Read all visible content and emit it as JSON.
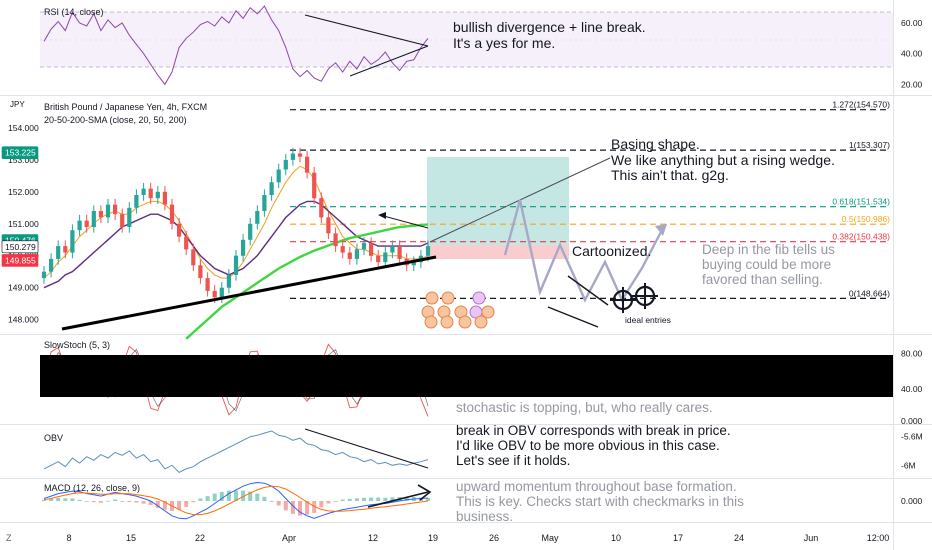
{
  "header": {
    "symbol_title": "British Pound / Japanese Yen, 4h, FXCM",
    "sma_legend": "20-50-200-SMA (close, 20, 50, 200)",
    "currency_badge": "JPY",
    "rsi_legend": "RSI (14, close)",
    "stoch_legend": "SlowStoch (5, 3)",
    "obv_legend": "OBV",
    "macd_legend": "MACD (12, 26, close, 9)",
    "timezone_label": "Z"
  },
  "annotations": {
    "rsi_note": [
      "bullish divergence + line break.",
      "It's a yes for me."
    ],
    "basing_note": [
      "Basing shape.",
      "We like anything but a rising wedge.",
      "This ain't that. g2g."
    ],
    "cartoon_note": "Cartoonized.",
    "fib_note": [
      "Deep in the fib tells us",
      "buying could be more",
      "favored than selling."
    ],
    "ideal_entries": "ideal entries",
    "stoch_note": "stochastic is topping, but, who really cares.",
    "obv_note": [
      "break in OBV corresponds with break in price.",
      "I'd like OBV to be more obvious in this case.",
      "Let's see if it holds."
    ],
    "macd_note": [
      "upward momentum throughout base formation.",
      "This is key. Checks start with checkmarks in this",
      "business."
    ]
  },
  "colors": {
    "candle_up": "#26a69a",
    "candle_down": "#ef5350",
    "sma20": "#f59d1b",
    "sma50": "#5b2c83",
    "sma200": "#3fd63f",
    "rsi": "#8e44ad",
    "fib_green": "#089981",
    "fib_orange": "#f7a21b",
    "fib_red": "#f23645",
    "price_badge_green": "#089981",
    "price_badge_red": "#f23645",
    "obv": "#5b8fbf",
    "macd_line": "#2962ff",
    "signal_line": "#ff6d00"
  },
  "chart_data": [
    {
      "type": "line",
      "panel": "RSI (14, close)",
      "y_ticks": [
        "60.00",
        "40.00",
        "20.00"
      ],
      "ylim": [
        13,
        75
      ],
      "points": [
        48,
        56,
        61,
        55,
        67,
        60,
        58,
        66,
        55,
        62,
        57,
        60,
        52,
        46,
        40,
        33,
        26,
        20,
        28,
        44,
        50,
        54,
        59,
        61,
        58,
        64,
        60,
        68,
        63,
        70,
        66,
        71,
        62,
        55,
        44,
        30,
        25,
        29,
        24,
        22,
        30,
        34,
        28,
        35,
        30,
        38,
        33,
        36,
        41,
        34,
        29,
        35,
        36,
        44,
        50
      ]
    },
    {
      "type": "line",
      "panel": "British Pound / Japanese Yen, 4h, FXCM",
      "y_ticks": [
        "154.000",
        "153.000",
        "152.000",
        "151.000",
        "150.000",
        "149.000",
        "148.000"
      ],
      "ylim": [
        147.55,
        155.0
      ],
      "x_ticks": [
        "8",
        "15",
        "22",
        "Apr",
        "12",
        "19",
        "26",
        "May",
        "10",
        "17",
        "24",
        "Jun",
        "12:00"
      ],
      "price_badges": [
        "153.225",
        "150.476",
        "150.279",
        "149.855"
      ],
      "fib_levels": [
        {
          "label": "1.272(154.570)",
          "value": 154.57
        },
        {
          "label": "1(153.307)",
          "value": 153.307
        },
        {
          "label": "0.618(151.534)",
          "value": 151.534
        },
        {
          "label": "0.5(150.986)",
          "value": 150.986
        },
        {
          "label": "0.382(150.438)",
          "value": 150.438
        },
        {
          "label": "0(148.664)",
          "value": 148.664
        }
      ],
      "close": [
        149.5,
        149.9,
        150.3,
        150.1,
        150.8,
        151.1,
        150.9,
        151.4,
        151.2,
        151.6,
        151.3,
        150.9,
        151.5,
        151.9,
        152.1,
        151.8,
        152.0,
        151.6,
        151.0,
        150.6,
        150.2,
        149.7,
        149.3,
        148.9,
        148.7,
        149.0,
        149.4,
        150.0,
        150.5,
        151.0,
        151.4,
        151.9,
        152.3,
        152.7,
        153.0,
        153.2,
        153.1,
        152.6,
        151.8,
        151.2,
        150.7,
        150.3,
        150.1,
        149.9,
        150.2,
        150.4,
        150.0,
        149.8,
        150.1,
        150.3,
        149.9,
        149.7,
        149.8,
        150.0,
        150.3
      ],
      "series": [
        {
          "name": "20-SMA",
          "values": [
            149.3,
            149.5,
            149.8,
            150.0,
            150.3,
            150.6,
            150.8,
            151.0,
            151.2,
            151.3,
            151.4,
            151.3,
            151.3,
            151.5,
            151.6,
            151.7,
            151.7,
            151.6,
            151.4,
            151.1,
            150.7,
            150.3,
            149.9,
            149.6,
            149.4,
            149.3,
            149.3,
            149.5,
            149.8,
            150.2,
            150.6,
            151.0,
            151.5,
            151.9,
            152.3,
            152.6,
            152.8,
            152.7,
            152.4,
            151.9,
            151.4,
            151.0,
            150.6,
            150.4,
            150.2,
            150.2,
            150.1,
            150.0,
            150.0,
            150.0,
            150.0,
            149.9,
            149.9,
            149.9,
            150.0
          ]
        },
        {
          "name": "50-SMA",
          "values": [
            149.0,
            149.1,
            149.2,
            149.4,
            149.5,
            149.7,
            149.9,
            150.1,
            150.3,
            150.5,
            150.7,
            150.9,
            151.0,
            151.1,
            151.2,
            151.3,
            151.3,
            151.2,
            151.1,
            150.9,
            150.6,
            150.3,
            150.0,
            149.8,
            149.6,
            149.5,
            149.4,
            149.5,
            149.6,
            149.8,
            150.0,
            150.3,
            150.6,
            150.9,
            151.2,
            151.4,
            151.6,
            151.7,
            151.7,
            151.6,
            151.4,
            151.2,
            151.0,
            150.8,
            150.6,
            150.5,
            150.4,
            150.3,
            150.3,
            150.3,
            150.3,
            150.3,
            150.3,
            150.3,
            150.4
          ]
        },
        {
          "name": "200-SMA",
          "values": [
            null,
            null,
            null,
            null,
            null,
            null,
            null,
            null,
            null,
            null,
            null,
            null,
            null,
            null,
            null,
            null,
            null,
            null,
            null,
            null,
            147.4,
            147.6,
            147.8,
            148.0,
            148.2,
            148.4,
            148.55,
            148.7,
            148.85,
            149.0,
            149.15,
            149.3,
            149.45,
            149.6,
            149.72,
            149.84,
            149.96,
            150.06,
            150.16,
            150.24,
            150.32,
            150.4,
            150.48,
            150.55,
            150.6,
            150.65,
            150.7,
            150.75,
            150.8,
            150.85,
            150.9,
            150.92,
            150.94,
            150.96,
            150.98
          ]
        }
      ]
    },
    {
      "type": "line",
      "panel": "SlowStoch (5, 3)",
      "y_ticks": [
        "80.00",
        "40.00",
        "0.000"
      ],
      "ylim": [
        0,
        100
      ]
    },
    {
      "type": "line",
      "panel": "OBV",
      "y_ticks": [
        "-5.6M",
        "-6M"
      ],
      "values": [
        -6.05,
        -6.0,
        -5.95,
        -6.02,
        -5.9,
        -5.97,
        -5.88,
        -5.93,
        -5.85,
        -5.9,
        -5.82,
        -5.86,
        -5.8,
        -5.9,
        -5.85,
        -5.95,
        -5.92,
        -6.05,
        -6.0,
        -6.1,
        -6.05,
        -6.02,
        -5.95,
        -5.9,
        -5.85,
        -5.8,
        -5.75,
        -5.7,
        -5.65,
        -5.6,
        -5.58,
        -5.55,
        -5.52,
        -5.58,
        -5.6,
        -5.65,
        -5.62,
        -5.7,
        -5.72,
        -5.78,
        -5.8,
        -5.85,
        -5.82,
        -5.88,
        -5.9,
        -5.95,
        -5.92,
        -5.98,
        -5.96,
        -6.0,
        -5.98,
        -6.0,
        -5.97,
        -5.95,
        -5.92
      ]
    },
    {
      "type": "line",
      "panel": "MACD (12, 26, close, 9)",
      "y_ticks": [
        "0.000"
      ],
      "series": [
        {
          "name": "MACD",
          "values": [
            0.1,
            0.2,
            0.3,
            0.35,
            0.4,
            0.38,
            0.3,
            0.25,
            0.2,
            0.28,
            0.35,
            0.3,
            0.25,
            0.2,
            0.1,
            0.0,
            -0.2,
            -0.4,
            -0.6,
            -0.7,
            -0.72,
            -0.6,
            -0.45,
            -0.3,
            -0.1,
            0.1,
            0.3,
            0.45,
            0.6,
            0.7,
            0.75,
            0.72,
            0.6,
            0.4,
            0.1,
            -0.2,
            -0.45,
            -0.6,
            -0.7,
            -0.6,
            -0.5,
            -0.42,
            -0.35,
            -0.3,
            -0.25,
            -0.2,
            -0.15,
            -0.12,
            -0.1,
            -0.05,
            0.0,
            0.05,
            0.08,
            0.1,
            0.12
          ]
        },
        {
          "name": "Signal",
          "values": [
            0.05,
            0.1,
            0.18,
            0.24,
            0.3,
            0.33,
            0.32,
            0.3,
            0.27,
            0.27,
            0.29,
            0.3,
            0.29,
            0.26,
            0.21,
            0.16,
            0.08,
            -0.05,
            -0.2,
            -0.35,
            -0.48,
            -0.55,
            -0.55,
            -0.5,
            -0.4,
            -0.27,
            -0.12,
            0.03,
            0.18,
            0.32,
            0.45,
            0.55,
            0.6,
            0.58,
            0.48,
            0.32,
            0.14,
            -0.05,
            -0.22,
            -0.34,
            -0.4,
            -0.42,
            -0.41,
            -0.39,
            -0.36,
            -0.33,
            -0.29,
            -0.26,
            -0.23,
            -0.2,
            -0.16,
            -0.12,
            -0.08,
            -0.04,
            0.0
          ]
        }
      ]
    }
  ]
}
